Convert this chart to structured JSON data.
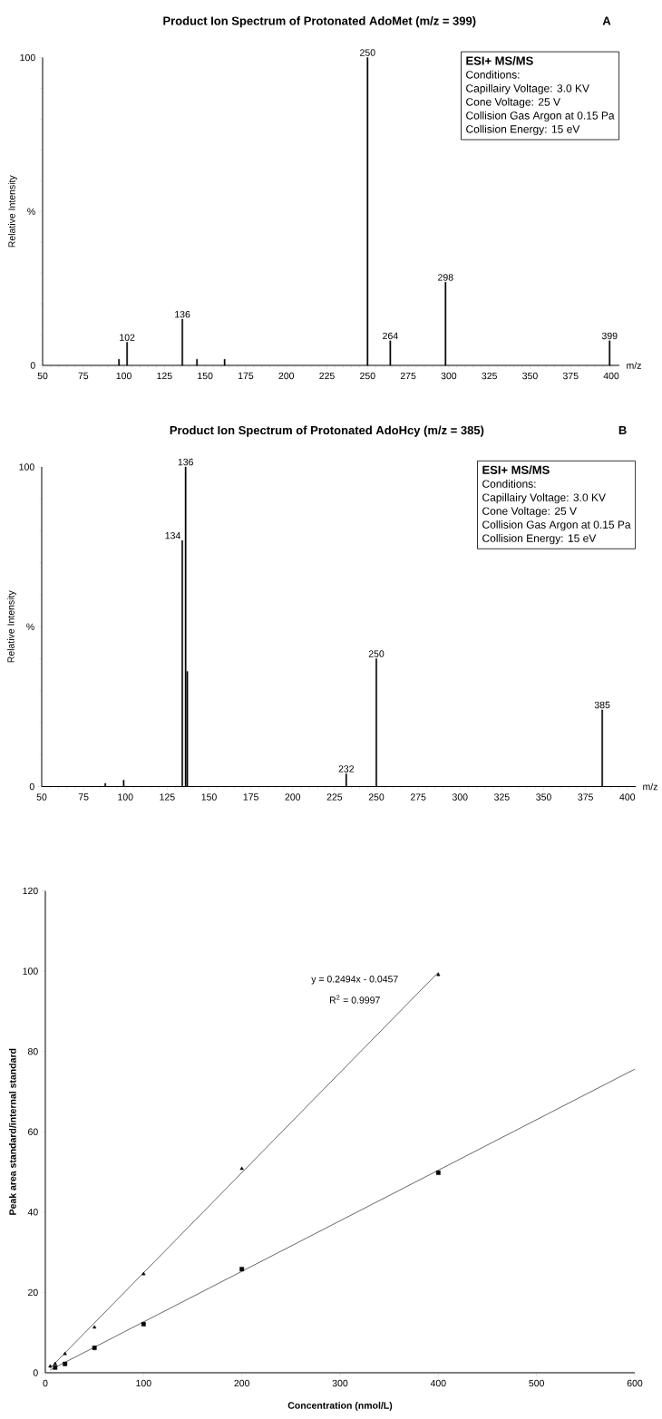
{
  "chart_data": [
    {
      "type": "bar",
      "title": "Product Ion Spectrum of Protonated AdoMet (m/z = 399)",
      "xlabel": "m/z",
      "ylabel": "Relative Intensity",
      "color": "#000000",
      "x": [
        97,
        102,
        136,
        145,
        162,
        250,
        264,
        298,
        399
      ],
      "values": [
        2,
        7.5,
        15,
        2,
        2,
        100,
        8,
        27,
        8
      ],
      "xlim": [
        50,
        405
      ],
      "xticks": [
        50,
        75,
        100,
        125,
        150,
        175,
        200,
        225,
        250,
        275,
        300,
        325,
        350,
        375,
        400
      ],
      "ylim": [
        0,
        100
      ],
      "yticks": [
        0,
        {
          "value": 50,
          "label": "%"
        },
        100
      ],
      "annotations": [
        "A",
        "ESI+ MS/MS",
        "Conditions:",
        "Capillairy Voltage: 3.0 KV",
        "Cone Voltage: 25 V",
        "Collision Gas Argon at 0.15 Pa",
        "Collision Energy: 15 eV",
        {
          "text": "102",
          "x": 102,
          "y": 7.5
        },
        {
          "text": "136",
          "x": 136,
          "y": 15
        },
        {
          "text": "250",
          "x": 250,
          "y": 100
        },
        {
          "text": "264",
          "x": 264,
          "y": 8
        },
        {
          "text": "298",
          "x": 298,
          "y": 27
        },
        {
          "text": "399",
          "x": 399,
          "y": 8
        }
      ]
    },
    {
      "type": "bar",
      "title": "Product Ion Spectrum of Protonated AdoHcy (m/z = 385)",
      "xlabel": "m/z",
      "ylabel": "Relative Intensity",
      "color": "#000000",
      "x": [
        88,
        99,
        134,
        136,
        137,
        232,
        250,
        385
      ],
      "values": [
        1,
        2,
        77,
        100,
        36,
        4,
        40,
        24
      ],
      "xlim": [
        50,
        405
      ],
      "xticks": [
        50,
        75,
        100,
        125,
        150,
        175,
        200,
        225,
        250,
        275,
        300,
        325,
        350,
        375,
        400
      ],
      "ylim": [
        0,
        100
      ],
      "yticks": [
        0,
        {
          "value": 50,
          "label": "%"
        },
        100
      ],
      "annotations": [
        "B",
        "ESI+ MS/MS",
        "Conditions:",
        "Capillairy Voltage: 3.0 KV",
        "Cone Voltage: 25 V",
        "Collision Gas Argon at 0.15 Pa",
        "Collision Energy: 15 eV",
        {
          "text": "134",
          "x": 134,
          "y": 77
        },
        {
          "text": "136",
          "x": 136,
          "y": 100
        },
        {
          "text": "232",
          "x": 232,
          "y": 4
        },
        {
          "text": "250",
          "x": 250,
          "y": 40
        },
        {
          "text": "385",
          "x": 385,
          "y": 24
        }
      ]
    },
    {
      "type": "scatter",
      "xlabel": "Concentration (nmol/L)",
      "ylabel": "Peak area standard/internal standard",
      "xlim": [
        0,
        600
      ],
      "xticks": [
        0,
        100,
        200,
        300,
        400,
        500,
        600
      ],
      "ylim": [
        0,
        120
      ],
      "yticks": [
        0,
        20,
        40,
        60,
        80,
        100,
        120
      ],
      "series": [
        {
          "x": [
            5,
            10,
            20,
            50,
            100,
            200,
            400
          ],
          "values": [
            1.6,
            2.2,
            4.7,
            11.3,
            24.6,
            50.8,
            99.1
          ],
          "color": "#000000",
          "marker": "triangle"
        },
        {
          "x": [
            10,
            20,
            50,
            100,
            200,
            400
          ],
          "values": [
            1.3,
            2.2,
            6.2,
            12.1,
            25.8,
            49.8
          ],
          "color": "#000000",
          "marker": "square"
        },
        {
          "type": "line",
          "x": [
            5,
            400
          ],
          "values": [
            1.2,
            99.7
          ],
          "color": "#000000",
          "marker": "none"
        },
        {
          "type": "line",
          "x": [
            5,
            600
          ],
          "values": [
            0.7,
            75.6
          ],
          "color": "#000000",
          "marker": "none"
        }
      ],
      "annotations": [
        "y = 0.2494x - 0.0457",
        "R$^{2}$ = 0.9997"
      ]
    }
  ]
}
